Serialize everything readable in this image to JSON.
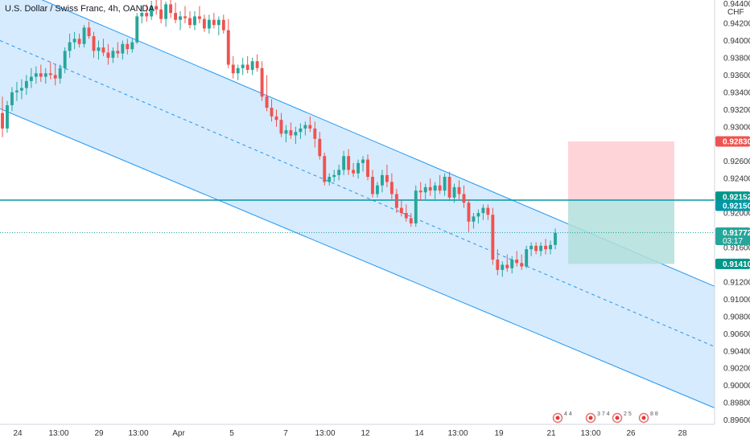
{
  "chart_data": {
    "type": "candlestick",
    "title": "U.S. Dollar / Swiss Franc, 4h, OANDA",
    "currency": "CHF",
    "ylim": [
      0.8955,
      0.9447
    ],
    "y_ticks": [
      "0.89600",
      "0.89800",
      "0.90000",
      "0.90200",
      "0.90400",
      "0.90600",
      "0.90800",
      "0.91000",
      "0.91200",
      "0.91600",
      "0.92000",
      "0.92200",
      "0.92400",
      "0.92600",
      "0.93000",
      "0.93200",
      "0.93400",
      "0.93600",
      "0.93800",
      "0.94000",
      "0.94200"
    ],
    "y_top_partial": "0.94400",
    "x_ticks": [
      "24",
      "13:00",
      "29",
      "13:00",
      "Apr",
      "5",
      "7",
      "13:00",
      "12",
      "14",
      "13:00",
      "19",
      "21",
      "13:00",
      "26",
      "28"
    ],
    "up_color": "#26a69a",
    "down_color": "#ef5350",
    "channel": {
      "fill": "#bbdefb",
      "line": "#2196f3",
      "upper": [
        [
          0.9468,
          0.9115
        ]
      ],
      "middle": [
        [
          0.94,
          0.9045
        ]
      ],
      "lower": [
        [
          0.9321,
          0.8974
        ]
      ]
    },
    "horizontal_line": {
      "value": 0.9215,
      "color": "#0097a7"
    },
    "position": {
      "entry": 0.92152,
      "stop": 0.9283,
      "target": 0.9141,
      "loss_color": "#ffcdd2",
      "profit_color": "#b2dfdb"
    },
    "price_tags": [
      {
        "label": "0.92830",
        "color": "#ef5350",
        "value": 0.9283
      },
      {
        "label": "0.92152",
        "color": "#009688",
        "value": 0.92152
      },
      {
        "label": "0.92150",
        "color": "#0097a7",
        "value": 0.9215
      },
      {
        "label": "0.91772",
        "color": "#26a69a",
        "value": 0.91772,
        "sub": "03:17"
      },
      {
        "label": "0.91410",
        "color": "#009688",
        "value": 0.9141
      }
    ],
    "current_price": 0.91772,
    "events": [
      {
        "label": "4 4"
      },
      {
        "label": "3 7 4"
      },
      {
        "label": "2 5"
      },
      {
        "label": "8 8"
      }
    ],
    "candles": [
      [
        0.9316,
        0.9335,
        0.9288,
        0.9298
      ],
      [
        0.9298,
        0.933,
        0.9293,
        0.9325
      ],
      [
        0.9325,
        0.9346,
        0.9318,
        0.934
      ],
      [
        0.934,
        0.9352,
        0.933,
        0.9342
      ],
      [
        0.9342,
        0.9355,
        0.9332,
        0.9345
      ],
      [
        0.9345,
        0.936,
        0.9337,
        0.9353
      ],
      [
        0.9353,
        0.9368,
        0.9345,
        0.9358
      ],
      [
        0.9358,
        0.937,
        0.935,
        0.9362
      ],
      [
        0.9362,
        0.9372,
        0.9352,
        0.9358
      ],
      [
        0.9358,
        0.9368,
        0.935,
        0.9362
      ],
      [
        0.9362,
        0.9375,
        0.9355,
        0.936
      ],
      [
        0.936,
        0.9372,
        0.9348,
        0.9356
      ],
      [
        0.9356,
        0.9372,
        0.935,
        0.9368
      ],
      [
        0.9368,
        0.9392,
        0.9362,
        0.9388
      ],
      [
        0.9388,
        0.9408,
        0.938,
        0.9398
      ],
      [
        0.9398,
        0.941,
        0.939,
        0.9402
      ],
      [
        0.9402,
        0.9408,
        0.9392,
        0.9396
      ],
      [
        0.9396,
        0.9418,
        0.9392,
        0.9415
      ],
      [
        0.9415,
        0.9422,
        0.9402,
        0.9405
      ],
      [
        0.9405,
        0.941,
        0.938,
        0.9388
      ],
      [
        0.9388,
        0.94,
        0.9378,
        0.9392
      ],
      [
        0.9392,
        0.9402,
        0.9382,
        0.9386
      ],
      [
        0.9386,
        0.9396,
        0.9372,
        0.938
      ],
      [
        0.938,
        0.9392,
        0.9374,
        0.9388
      ],
      [
        0.9388,
        0.9398,
        0.938,
        0.9385
      ],
      [
        0.9385,
        0.94,
        0.9378,
        0.9396
      ],
      [
        0.9396,
        0.9402,
        0.9384,
        0.939
      ],
      [
        0.939,
        0.9402,
        0.9386,
        0.9398
      ],
      [
        0.9398,
        0.9432,
        0.9396,
        0.9428
      ],
      [
        0.9428,
        0.944,
        0.942,
        0.9432
      ],
      [
        0.9432,
        0.9442,
        0.9422,
        0.9428
      ],
      [
        0.9428,
        0.9446,
        0.9424,
        0.944
      ],
      [
        0.944,
        0.945,
        0.943,
        0.9436
      ],
      [
        0.9436,
        0.945,
        0.942,
        0.9425
      ],
      [
        0.9425,
        0.9445,
        0.9416,
        0.9442
      ],
      [
        0.9442,
        0.945,
        0.9426,
        0.9432
      ],
      [
        0.9432,
        0.9444,
        0.942,
        0.9424
      ],
      [
        0.9424,
        0.9434,
        0.9412,
        0.9428
      ],
      [
        0.9428,
        0.944,
        0.942,
        0.9426
      ],
      [
        0.9426,
        0.9434,
        0.9414,
        0.9418
      ],
      [
        0.9418,
        0.9434,
        0.9412,
        0.9428
      ],
      [
        0.9428,
        0.944,
        0.942,
        0.9425
      ],
      [
        0.9425,
        0.943,
        0.941,
        0.9414
      ],
      [
        0.9414,
        0.943,
        0.9408,
        0.9424
      ],
      [
        0.9424,
        0.9432,
        0.9414,
        0.9418
      ],
      [
        0.9418,
        0.9428,
        0.9406,
        0.9424
      ],
      [
        0.9424,
        0.943,
        0.9408,
        0.9412
      ],
      [
        0.9412,
        0.9425,
        0.9368,
        0.9372
      ],
      [
        0.9372,
        0.9382,
        0.9356,
        0.9362
      ],
      [
        0.9362,
        0.9372,
        0.9354,
        0.9368
      ],
      [
        0.9368,
        0.938,
        0.936,
        0.9372
      ],
      [
        0.9372,
        0.9382,
        0.9362,
        0.9366
      ],
      [
        0.9366,
        0.938,
        0.936,
        0.9376
      ],
      [
        0.9376,
        0.9384,
        0.9364,
        0.9368
      ],
      [
        0.9368,
        0.9376,
        0.933,
        0.9335
      ],
      [
        0.9335,
        0.936,
        0.9318,
        0.9322
      ],
      [
        0.9322,
        0.9332,
        0.9306,
        0.9312
      ],
      [
        0.9312,
        0.932,
        0.93,
        0.9308
      ],
      [
        0.9308,
        0.9316,
        0.9288,
        0.9292
      ],
      [
        0.9292,
        0.9302,
        0.9282,
        0.9296
      ],
      [
        0.9296,
        0.9305,
        0.9286,
        0.929
      ],
      [
        0.929,
        0.93,
        0.928,
        0.9294
      ],
      [
        0.9294,
        0.9304,
        0.9286,
        0.9298
      ],
      [
        0.9298,
        0.9306,
        0.929,
        0.9302
      ],
      [
        0.9302,
        0.9312,
        0.9294,
        0.9298
      ],
      [
        0.9298,
        0.9306,
        0.9276,
        0.9286
      ],
      [
        0.9286,
        0.9294,
        0.9262,
        0.9266
      ],
      [
        0.9266,
        0.927,
        0.9232,
        0.9236
      ],
      [
        0.9236,
        0.9246,
        0.9232,
        0.9242
      ],
      [
        0.9242,
        0.925,
        0.9236,
        0.9244
      ],
      [
        0.9244,
        0.9256,
        0.9238,
        0.925
      ],
      [
        0.925,
        0.9272,
        0.9244,
        0.9266
      ],
      [
        0.9266,
        0.9274,
        0.9244,
        0.925
      ],
      [
        0.925,
        0.9258,
        0.9242,
        0.9246
      ],
      [
        0.9246,
        0.9262,
        0.924,
        0.9258
      ],
      [
        0.9258,
        0.9266,
        0.9248,
        0.9262
      ],
      [
        0.9262,
        0.9268,
        0.9238,
        0.9242
      ],
      [
        0.9242,
        0.925,
        0.9218,
        0.9222
      ],
      [
        0.9222,
        0.9236,
        0.9218,
        0.9232
      ],
      [
        0.9232,
        0.925,
        0.9224,
        0.9244
      ],
      [
        0.9244,
        0.9256,
        0.923,
        0.9236
      ],
      [
        0.9236,
        0.9246,
        0.9216,
        0.9222
      ],
      [
        0.9222,
        0.9228,
        0.92,
        0.9206
      ],
      [
        0.9206,
        0.9216,
        0.9196,
        0.92
      ],
      [
        0.92,
        0.921,
        0.919,
        0.9194
      ],
      [
        0.9194,
        0.92,
        0.9184,
        0.9188
      ],
      [
        0.9188,
        0.9232,
        0.9184,
        0.9226
      ],
      [
        0.9226,
        0.9236,
        0.9214,
        0.9224
      ],
      [
        0.9224,
        0.9234,
        0.9216,
        0.923
      ],
      [
        0.923,
        0.924,
        0.922,
        0.9226
      ],
      [
        0.9226,
        0.9236,
        0.9216,
        0.9232
      ],
      [
        0.9232,
        0.9244,
        0.9222,
        0.9226
      ],
      [
        0.9226,
        0.9246,
        0.922,
        0.9242
      ],
      [
        0.9242,
        0.9248,
        0.9214,
        0.9218
      ],
      [
        0.9218,
        0.9234,
        0.9212,
        0.923
      ],
      [
        0.923,
        0.9238,
        0.9216,
        0.9222
      ],
      [
        0.9222,
        0.9232,
        0.9206,
        0.9212
      ],
      [
        0.9212,
        0.9216,
        0.9178,
        0.919
      ],
      [
        0.919,
        0.92,
        0.9182,
        0.9196
      ],
      [
        0.9196,
        0.9204,
        0.9188,
        0.92
      ],
      [
        0.92,
        0.921,
        0.9192,
        0.9206
      ],
      [
        0.9206,
        0.921,
        0.9192,
        0.9198
      ],
      [
        0.9198,
        0.9206,
        0.914,
        0.9146
      ],
      [
        0.9146,
        0.9158,
        0.9128,
        0.9134
      ],
      [
        0.9134,
        0.9144,
        0.9126,
        0.914
      ],
      [
        0.914,
        0.9152,
        0.9132,
        0.9136
      ],
      [
        0.9136,
        0.915,
        0.913,
        0.9146
      ],
      [
        0.9146,
        0.9156,
        0.9138,
        0.9142
      ],
      [
        0.9142,
        0.9152,
        0.9134,
        0.9138
      ],
      [
        0.9138,
        0.9162,
        0.9136,
        0.9158
      ],
      [
        0.9158,
        0.9166,
        0.915,
        0.9162
      ],
      [
        0.9162,
        0.9166,
        0.9152,
        0.9156
      ],
      [
        0.9156,
        0.9166,
        0.915,
        0.9162
      ],
      [
        0.9162,
        0.917,
        0.9152,
        0.9158
      ],
      [
        0.9158,
        0.9168,
        0.9152,
        0.9163
      ],
      [
        0.9163,
        0.9182,
        0.9158,
        0.9177
      ]
    ]
  }
}
